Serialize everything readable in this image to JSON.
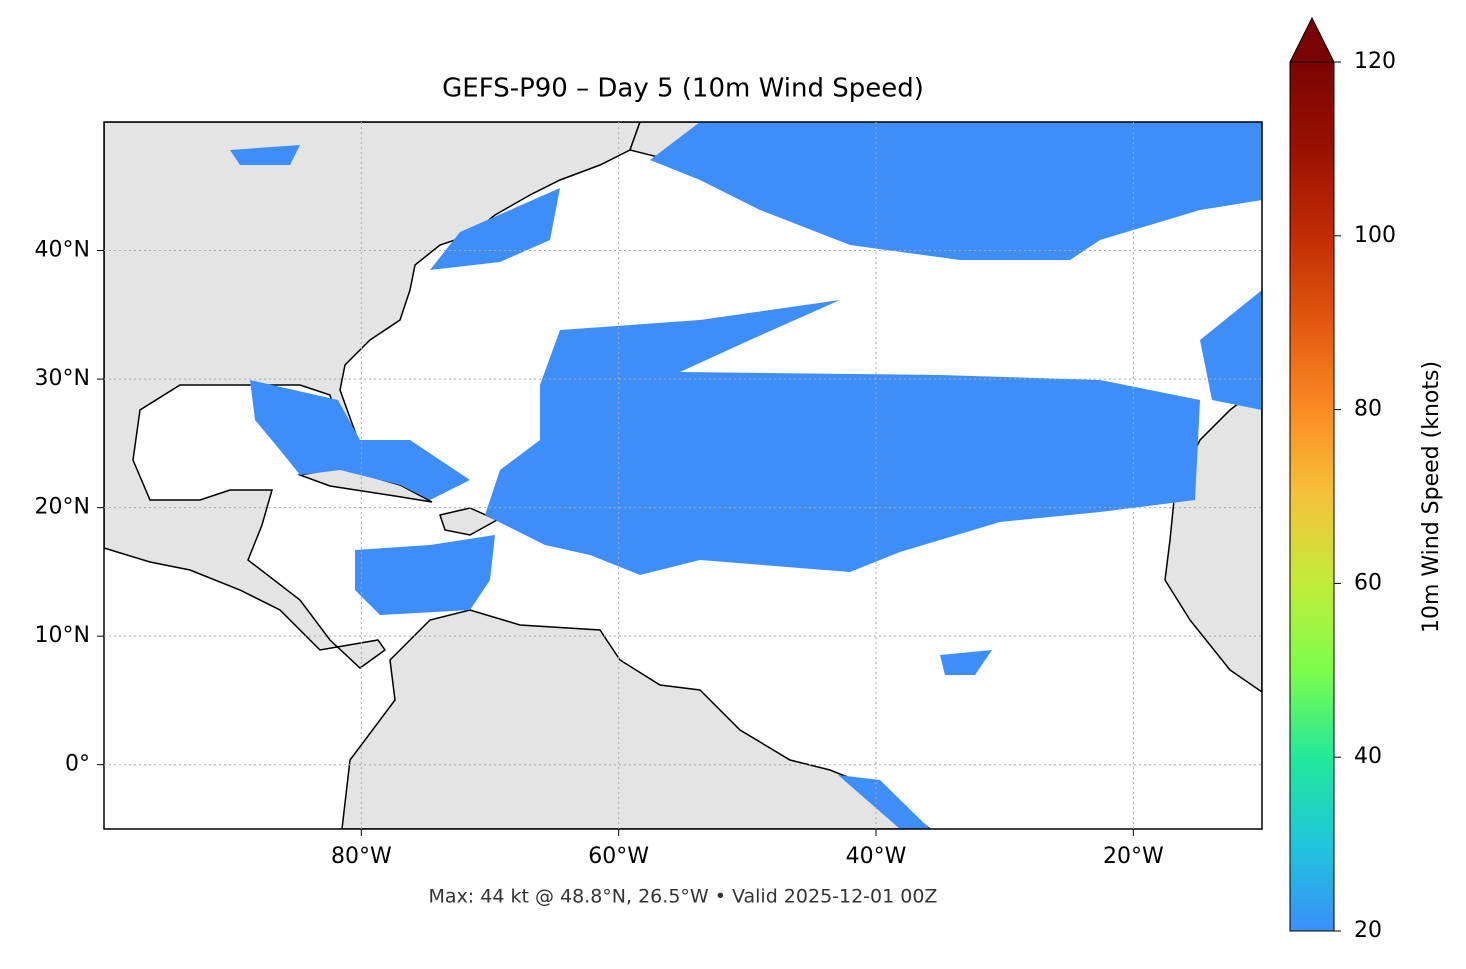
{
  "map": {
    "title": "GEFS-P90 – Day 5 (10m Wind Speed)",
    "note": "Max: 44 kt @ 48.8°N, 26.5°W • Valid 2025-12-01 00Z",
    "xlim": [
      -100,
      -10
    ],
    "ylim": [
      -5,
      50
    ],
    "xticks": [
      {
        "value": -80,
        "label": "80°W"
      },
      {
        "value": -60,
        "label": "60°W"
      },
      {
        "value": -40,
        "label": "40°W"
      },
      {
        "value": -20,
        "label": "20°W"
      }
    ],
    "yticks": [
      {
        "value": 0,
        "label": "0°"
      },
      {
        "value": 10,
        "label": "10°N"
      },
      {
        "value": 20,
        "label": "20°N"
      },
      {
        "value": 30,
        "label": "30°N"
      },
      {
        "value": 40,
        "label": "40°N"
      }
    ],
    "colorbar": {
      "label": "10m Wind Speed (knots)",
      "lim": [
        20,
        120
      ],
      "ticks": [
        20,
        40,
        60,
        80,
        100,
        120
      ]
    }
  }
}
